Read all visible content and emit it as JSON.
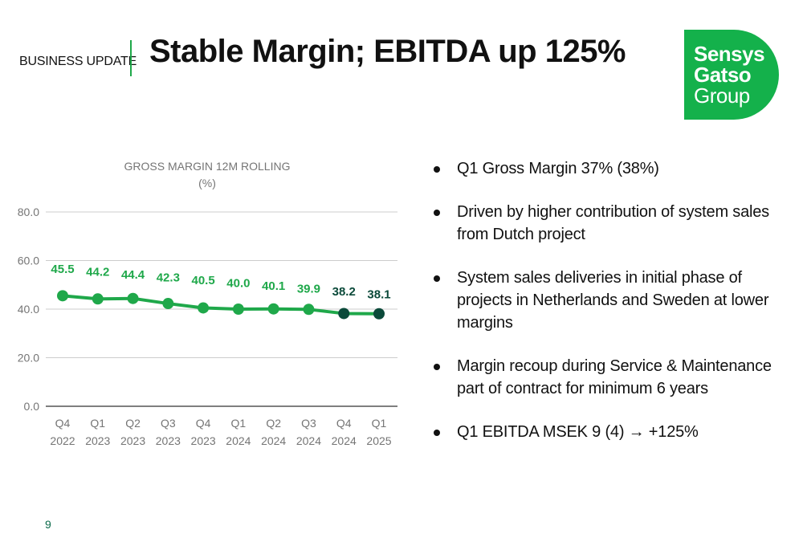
{
  "header": {
    "section_label": "BUSINESS UPDATE",
    "title": "Stable Margin; EBITDA up 125%"
  },
  "logo": {
    "line1": "Sensys",
    "line2": "Gatso",
    "line3": "Group",
    "color": "#14b14b"
  },
  "chart_data": {
    "type": "line",
    "title": "GROSS MARGIN 12M ROLLING",
    "subtitle": "(%)",
    "categories": [
      [
        "Q4",
        "2022"
      ],
      [
        "Q1",
        "2023"
      ],
      [
        "Q2",
        "2023"
      ],
      [
        "Q3",
        "2023"
      ],
      [
        "Q4",
        "2023"
      ],
      [
        "Q1",
        "2024"
      ],
      [
        "Q2",
        "2024"
      ],
      [
        "Q3",
        "2024"
      ],
      [
        "Q4",
        "2024"
      ],
      [
        "Q1",
        "2025"
      ]
    ],
    "series": [
      {
        "values": [
          45.5,
          44.2,
          44.4,
          42.3,
          40.5,
          40.0,
          40.1,
          39.9,
          38.2,
          38.1
        ],
        "labels": [
          "45.5",
          "44.2",
          "44.4",
          "42.3",
          "40.5",
          "40.0",
          "40.1",
          "39.9",
          "38.2",
          "38.1"
        ],
        "color": "#1fa84a",
        "highlight_color": "#0b4a3a",
        "highlight_from_index": 8
      }
    ],
    "yticks": [
      "0.0",
      "20.0",
      "40.0",
      "60.0",
      "80.0"
    ],
    "ylim": [
      0,
      80
    ],
    "grid": true,
    "legend": "none"
  },
  "bullets": [
    "Q1 Gross Margin 37% (38%)",
    "Driven by higher contribution of system sales from Dutch project",
    "System sales deliveries in initial phase of projects in Netherlands and Sweden at lower margins",
    "Margin recoup during Service & Maintenance part of contract for minimum 6 years",
    "Q1 EBITDA MSEK 9  (4) → +125%"
  ],
  "footer": {
    "page_number": "9"
  }
}
